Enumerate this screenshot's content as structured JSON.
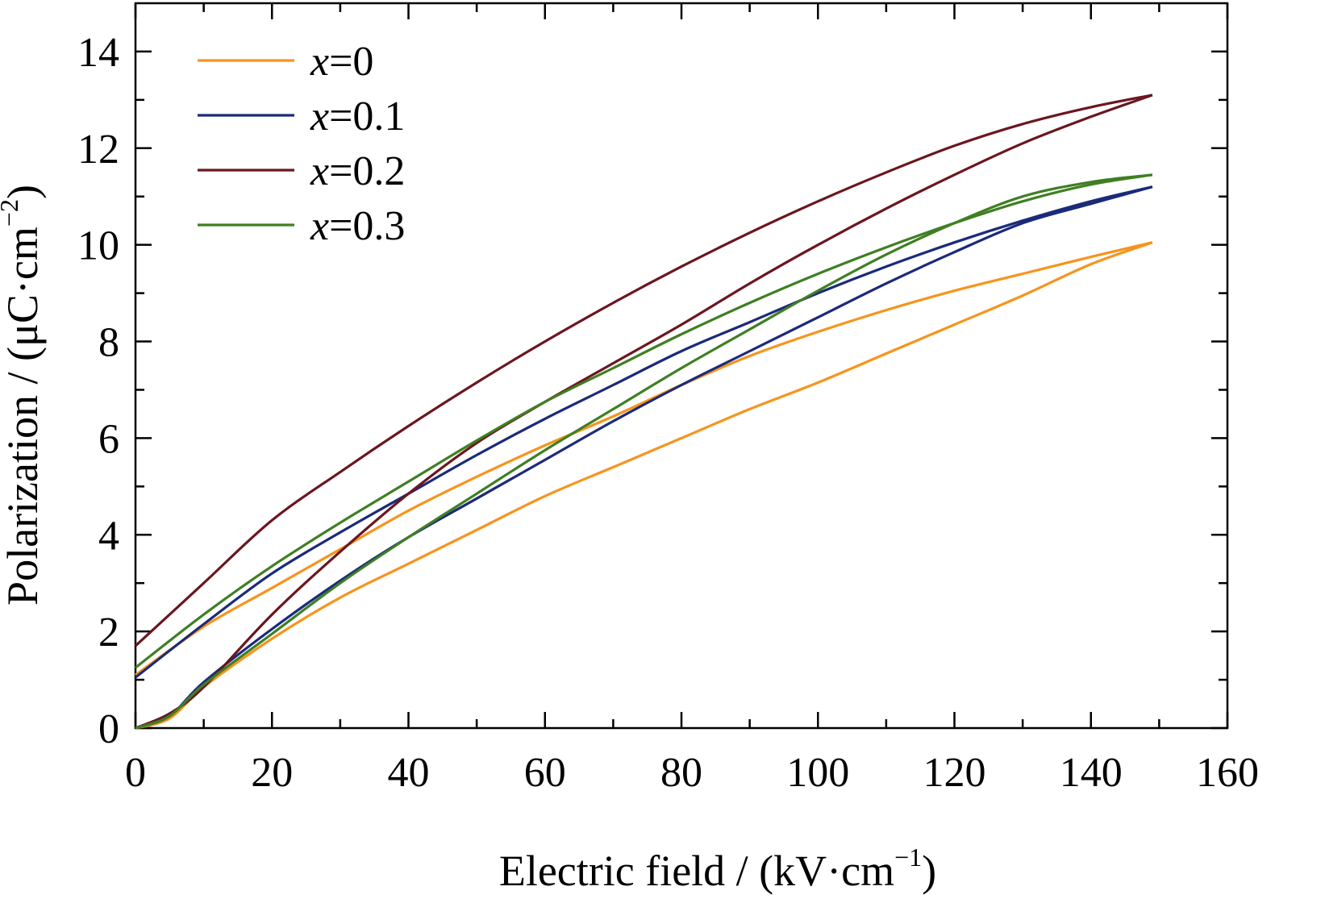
{
  "chart_data": {
    "type": "line",
    "title": "",
    "xlabel": "Electric field / (kV·cm",
    "xlabel_sup": "−1",
    "xlabel_end": ")",
    "ylabel": "Polarization / (μC·cm",
    "ylabel_sup": "−2",
    "ylabel_end": ")",
    "xlim": [
      0,
      160
    ],
    "ylim": [
      0,
      15
    ],
    "x_ticks": [
      0,
      20,
      40,
      60,
      80,
      100,
      120,
      140,
      160
    ],
    "y_ticks": [
      0,
      2,
      4,
      6,
      8,
      10,
      12,
      14
    ],
    "x_ticks_labels": [
      "0",
      "20",
      "40",
      "60",
      "80",
      "100",
      "120",
      "140",
      "160"
    ],
    "y_ticks_labels": [
      "0",
      "2",
      "4",
      "6",
      "8",
      "10",
      "12",
      "14"
    ],
    "grid": false,
    "legend_position": "top-left",
    "series": [
      {
        "name_prefix": "x",
        "name_suffix": "=0",
        "color": "#f7941d",
        "rising": [
          [
            0,
            0
          ],
          [
            5,
            0.2
          ],
          [
            10,
            0.85
          ],
          [
            20,
            1.85
          ],
          [
            30,
            2.7
          ],
          [
            40,
            3.4
          ],
          [
            50,
            4.1
          ],
          [
            60,
            4.8
          ],
          [
            70,
            5.4
          ],
          [
            80,
            6.0
          ],
          [
            90,
            6.6
          ],
          [
            100,
            7.15
          ],
          [
            110,
            7.75
          ],
          [
            120,
            8.35
          ],
          [
            130,
            8.95
          ],
          [
            140,
            9.6
          ],
          [
            149,
            10.05
          ]
        ],
        "falling": [
          [
            149,
            10.05
          ],
          [
            140,
            9.75
          ],
          [
            130,
            9.4
          ],
          [
            120,
            9.05
          ],
          [
            110,
            8.65
          ],
          [
            100,
            8.2
          ],
          [
            90,
            7.7
          ],
          [
            80,
            7.1
          ],
          [
            70,
            6.45
          ],
          [
            60,
            5.85
          ],
          [
            50,
            5.2
          ],
          [
            40,
            4.5
          ],
          [
            30,
            3.7
          ],
          [
            20,
            2.9
          ],
          [
            10,
            2.1
          ],
          [
            0,
            1.1
          ]
        ]
      },
      {
        "name_prefix": "x",
        "name_suffix": "=0.1",
        "color": "#1b2a7a",
        "rising": [
          [
            0,
            0
          ],
          [
            5,
            0.25
          ],
          [
            10,
            0.95
          ],
          [
            20,
            2.05
          ],
          [
            30,
            3.05
          ],
          [
            40,
            3.95
          ],
          [
            50,
            4.75
          ],
          [
            60,
            5.55
          ],
          [
            70,
            6.35
          ],
          [
            80,
            7.1
          ],
          [
            90,
            7.8
          ],
          [
            100,
            8.5
          ],
          [
            110,
            9.2
          ],
          [
            120,
            9.85
          ],
          [
            130,
            10.45
          ],
          [
            140,
            10.85
          ],
          [
            149,
            11.2
          ]
        ],
        "falling": [
          [
            149,
            11.2
          ],
          [
            140,
            10.9
          ],
          [
            130,
            10.5
          ],
          [
            120,
            10.05
          ],
          [
            110,
            9.55
          ],
          [
            100,
            9.0
          ],
          [
            90,
            8.4
          ],
          [
            80,
            7.8
          ],
          [
            70,
            7.1
          ],
          [
            60,
            6.4
          ],
          [
            50,
            5.65
          ],
          [
            40,
            4.85
          ],
          [
            30,
            4.05
          ],
          [
            20,
            3.2
          ],
          [
            10,
            2.15
          ],
          [
            0,
            1.05
          ]
        ]
      },
      {
        "name_prefix": "x",
        "name_suffix": "=0.2",
        "color": "#6b1620",
        "rising": [
          [
            0,
            0
          ],
          [
            5,
            0.3
          ],
          [
            10,
            0.85
          ],
          [
            20,
            2.35
          ],
          [
            30,
            3.65
          ],
          [
            40,
            4.85
          ],
          [
            50,
            5.9
          ],
          [
            60,
            6.75
          ],
          [
            70,
            7.55
          ],
          [
            80,
            8.35
          ],
          [
            90,
            9.2
          ],
          [
            100,
            10.0
          ],
          [
            110,
            10.75
          ],
          [
            120,
            11.45
          ],
          [
            130,
            12.1
          ],
          [
            140,
            12.65
          ],
          [
            149,
            13.1
          ]
        ],
        "falling": [
          [
            149,
            13.1
          ],
          [
            140,
            12.85
          ],
          [
            130,
            12.5
          ],
          [
            120,
            12.05
          ],
          [
            110,
            11.5
          ],
          [
            100,
            10.9
          ],
          [
            90,
            10.25
          ],
          [
            80,
            9.55
          ],
          [
            70,
            8.8
          ],
          [
            60,
            8.0
          ],
          [
            50,
            7.15
          ],
          [
            40,
            6.25
          ],
          [
            30,
            5.3
          ],
          [
            20,
            4.3
          ],
          [
            10,
            3.0
          ],
          [
            0,
            1.7
          ]
        ]
      },
      {
        "name_prefix": "x",
        "name_suffix": "=0.3",
        "color": "#3f7f23",
        "rising": [
          [
            0,
            0
          ],
          [
            5,
            0.25
          ],
          [
            10,
            0.9
          ],
          [
            20,
            1.95
          ],
          [
            30,
            3.0
          ],
          [
            40,
            3.95
          ],
          [
            50,
            4.85
          ],
          [
            60,
            5.75
          ],
          [
            70,
            6.6
          ],
          [
            80,
            7.45
          ],
          [
            90,
            8.25
          ],
          [
            100,
            9.05
          ],
          [
            110,
            9.8
          ],
          [
            120,
            10.45
          ],
          [
            130,
            11.0
          ],
          [
            140,
            11.3
          ],
          [
            149,
            11.45
          ]
        ],
        "falling": [
          [
            149,
            11.45
          ],
          [
            140,
            11.25
          ],
          [
            130,
            10.9
          ],
          [
            120,
            10.45
          ],
          [
            110,
            9.95
          ],
          [
            100,
            9.4
          ],
          [
            90,
            8.8
          ],
          [
            80,
            8.15
          ],
          [
            70,
            7.45
          ],
          [
            60,
            6.75
          ],
          [
            50,
            5.95
          ],
          [
            40,
            5.1
          ],
          [
            30,
            4.25
          ],
          [
            20,
            3.35
          ],
          [
            10,
            2.35
          ],
          [
            0,
            1.25
          ]
        ]
      }
    ]
  }
}
